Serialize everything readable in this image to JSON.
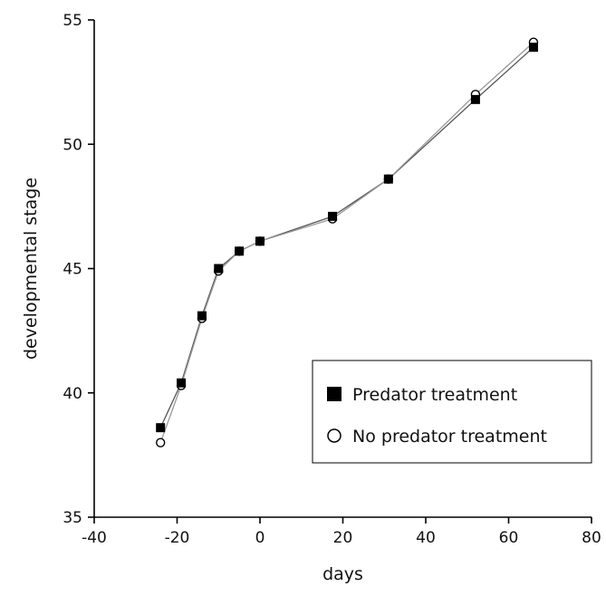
{
  "chart_data": {
    "type": "line",
    "title": "",
    "xlabel": "days",
    "ylabel": "developmental stage",
    "xlim": [
      -40,
      80
    ],
    "ylim": [
      35,
      55
    ],
    "xticks": [
      "-40",
      "-20",
      "0",
      "20",
      "40",
      "60",
      "80"
    ],
    "yticks": [
      "35",
      "40",
      "45",
      "50",
      "55"
    ],
    "grid": false,
    "legend_position": "lower-right",
    "series": [
      {
        "name": "Predator treatment",
        "marker": "filled-square",
        "color": "#000000",
        "x": [
          -24,
          -19,
          -14,
          -10,
          -5,
          0,
          17.5,
          31,
          52,
          66
        ],
        "y": [
          38.6,
          40.4,
          43.1,
          45.0,
          45.7,
          46.1,
          47.1,
          48.6,
          51.8,
          53.9
        ]
      },
      {
        "name": "No predator treatment",
        "marker": "open-circle",
        "color": "#000000",
        "x": [
          -24,
          -19,
          -14,
          -10,
          -5,
          0,
          17.5,
          31,
          52,
          66
        ],
        "y": [
          38.0,
          40.3,
          43.0,
          44.9,
          45.7,
          46.1,
          47.0,
          48.6,
          52.0,
          54.1
        ]
      }
    ]
  }
}
